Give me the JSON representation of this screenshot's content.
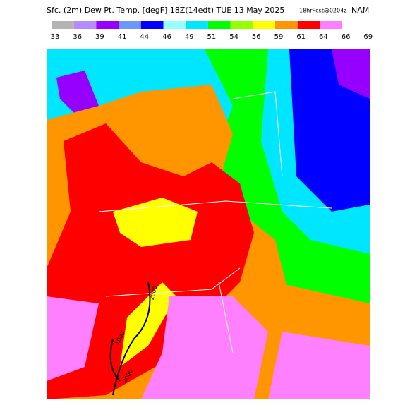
{
  "header": {
    "title": "Sfc. (2m) Dew Pt. Temp. [degF] 18Z(14edt) TUE 13 May 2025",
    "forecast": "18hrFcst@0204z",
    "model": "NAM"
  },
  "colorbar": {
    "labels": [
      33,
      36,
      39,
      41,
      44,
      46,
      49,
      51,
      54,
      56,
      59,
      61,
      64,
      66,
      69
    ],
    "colors": [
      "#b4b4b4",
      "#b48cff",
      "#9600ff",
      "#6e96ff",
      "#0000ff",
      "#96ffff",
      "#00e6ff",
      "#00ff00",
      "#96ff00",
      "#ffff00",
      "#ff9600",
      "#ff0000",
      "#ff80ff"
    ]
  },
  "contour_labels": [
    "2000",
    "1000",
    "2000"
  ]
}
